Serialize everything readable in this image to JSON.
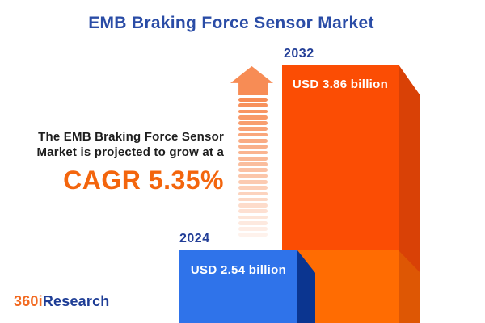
{
  "title": "EMB Braking Force Sensor Market",
  "promo": {
    "line1": "The EMB Braking Force Sensor",
    "line2": "Market is projected to grow at a",
    "cagr": "CAGR 5.35%"
  },
  "bars": {
    "y2024": {
      "year": "2024",
      "value_label": "USD 2.54 billion"
    },
    "y2032": {
      "year": "2032",
      "value_label": "USD 3.86 billion"
    }
  },
  "arrow": {
    "icon": "growth-up-arrow",
    "stripe_count": 24
  },
  "logo": {
    "part1": "360i",
    "part2": "Research"
  },
  "colors": {
    "background": "#ffffff",
    "title_text": "#2a4ca6",
    "year_text": "#223e97",
    "promo_text": "#1d1d1d",
    "cagr_text": "#f3650d",
    "arrow": "#f78c55",
    "blue_front": "#2f73ea",
    "blue_side": "#0b3590",
    "orange_front": "#fb4d04",
    "orange_side": "#d94106",
    "orange_base_front": "#ff6c02",
    "orange_base_side": "#de5704",
    "value_text": "#ffffff",
    "logo_orange": "#f26a21",
    "logo_blue": "#1f3e96"
  },
  "chart_data": {
    "type": "bar",
    "title": "EMB Braking Force Sensor Market",
    "categories": [
      "2024",
      "2032"
    ],
    "values": [
      2.54,
      3.86
    ],
    "unit": "USD billion",
    "value_labels": [
      "USD 2.54 billion",
      "USD 3.86 billion"
    ],
    "cagr_percent": 5.35,
    "annotations": [
      "The EMB Braking Force Sensor Market is projected to grow at a CAGR 5.35%"
    ],
    "series_colors": {
      "2024": "#2f73ea",
      "2032": "#fb4d04"
    },
    "grid": false,
    "legend": false
  }
}
